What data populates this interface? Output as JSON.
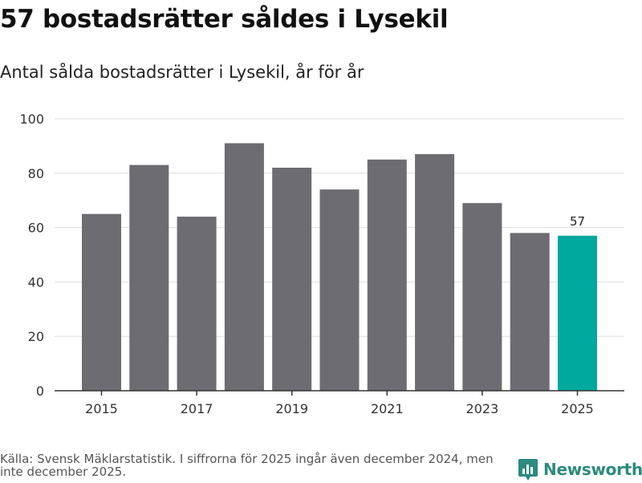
{
  "header": {
    "title": "57 bostadsrätter såldes i Lysekil",
    "subtitle": "Antal sålda bostadsrätter i Lysekil, år för år"
  },
  "footer": {
    "source": "Källa: Svensk Mäklarstatistik. I siffrorna för 2025 ingår även december 2024, men inte december 2025.",
    "brand": "Newsworthy"
  },
  "colors": {
    "bar": "#6d6c72",
    "highlight": "#00a99d",
    "grid": "#dedede",
    "axis": "#333333",
    "tick_text": "#333333",
    "brand": "#2c8a7e"
  },
  "chart_data": {
    "type": "bar",
    "title": "57 bostadsrätter såldes i Lysekil",
    "subtitle": "Antal sålda bostadsrätter i Lysekil, år för år",
    "xlabel": "",
    "ylabel": "",
    "categories": [
      "2015",
      "2016",
      "2017",
      "2018",
      "2019",
      "2020",
      "2021",
      "2022",
      "2023",
      "2024",
      "2025"
    ],
    "values": [
      65,
      83,
      64,
      91,
      82,
      74,
      85,
      87,
      69,
      58,
      57
    ],
    "x_tick_labels": [
      "2015",
      "2017",
      "2019",
      "2021",
      "2023",
      "2025"
    ],
    "y_ticks": [
      "0",
      "20",
      "40",
      "60",
      "80",
      "100"
    ],
    "ylim": [
      0,
      100
    ],
    "grid": true,
    "highlight_category": "2025",
    "annotations": [
      {
        "category": "2025",
        "text": "57"
      }
    ]
  }
}
